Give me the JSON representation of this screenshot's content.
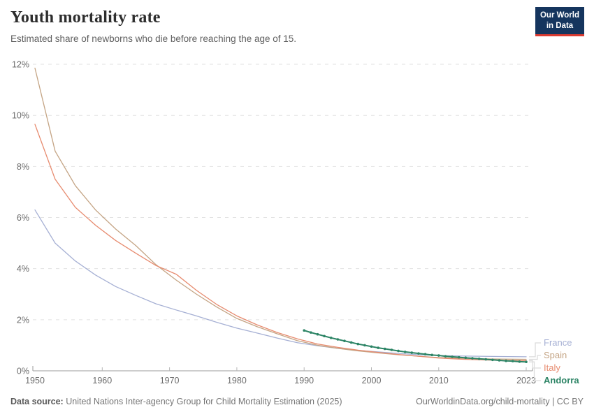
{
  "header": {
    "title": "Youth mortality rate",
    "subtitle": "Estimated share of newborns who die before reaching the age of 15."
  },
  "logo": {
    "line1": "Our World",
    "line2": "in Data",
    "bg_color": "#15355e",
    "accent_color": "#dc3a30"
  },
  "chart_data": {
    "type": "line",
    "title": "Youth mortality rate",
    "xlabel": "",
    "ylabel": "",
    "xlim": [
      1950,
      2023
    ],
    "ylim": [
      0,
      12
    ],
    "grid": "dashed-horizontal",
    "legend_position": "right",
    "y_axis": {
      "unit": "%",
      "ticks": [
        {
          "value": 0,
          "label": "0%"
        },
        {
          "value": 2,
          "label": "2%"
        },
        {
          "value": 4,
          "label": "4%"
        },
        {
          "value": 6,
          "label": "6%"
        },
        {
          "value": 8,
          "label": "8%"
        },
        {
          "value": 10,
          "label": "10%"
        },
        {
          "value": 12,
          "label": "12%"
        }
      ]
    },
    "x_axis": {
      "ticks": [
        {
          "year": 1950,
          "label": "1950",
          "tick": false
        },
        {
          "year": 1960,
          "label": "1960",
          "tick": true
        },
        {
          "year": 1970,
          "label": "1970",
          "tick": true
        },
        {
          "year": 1980,
          "label": "1980",
          "tick": true
        },
        {
          "year": 1990,
          "label": "1990",
          "tick": true
        },
        {
          "year": 2000,
          "label": "2000",
          "tick": true
        },
        {
          "year": 2010,
          "label": "2010",
          "tick": true
        },
        {
          "year": 2023,
          "label": "2023",
          "tick": true
        }
      ]
    },
    "series": [
      {
        "name": "France",
        "color": "#a6b0d4",
        "markers": false,
        "bold": false,
        "line_width": 1.3,
        "x": [
          1950,
          1953,
          1956,
          1959,
          1962,
          1965,
          1968,
          1971,
          1974,
          1977,
          1980,
          1983,
          1986,
          1989,
          1992,
          1995,
          1998,
          2001,
          2004,
          2007,
          2010,
          2013,
          2016,
          2019,
          2023
        ],
        "values": [
          6.3,
          5.0,
          4.3,
          3.75,
          3.3,
          2.95,
          2.62,
          2.38,
          2.15,
          1.9,
          1.67,
          1.48,
          1.28,
          1.1,
          0.98,
          0.88,
          0.8,
          0.74,
          0.68,
          0.63,
          0.6,
          0.58,
          0.57,
          0.56,
          0.55
        ]
      },
      {
        "name": "Spain",
        "color": "#c4a484",
        "markers": false,
        "bold": false,
        "line_width": 1.3,
        "x": [
          1950,
          1953,
          1956,
          1959,
          1962,
          1965,
          1968,
          1971,
          1974,
          1977,
          1980,
          1983,
          1986,
          1989,
          1992,
          1995,
          1998,
          2001,
          2004,
          2007,
          2010,
          2013,
          2016,
          2019,
          2023
        ],
        "values": [
          11.85,
          8.6,
          7.25,
          6.3,
          5.55,
          4.9,
          4.15,
          3.55,
          3.0,
          2.5,
          2.05,
          1.73,
          1.45,
          1.18,
          1.0,
          0.88,
          0.78,
          0.7,
          0.63,
          0.57,
          0.52,
          0.49,
          0.47,
          0.46,
          0.45
        ]
      },
      {
        "name": "Italy",
        "color": "#e78b6f",
        "markers": false,
        "bold": false,
        "line_width": 1.3,
        "x": [
          1950,
          1953,
          1956,
          1959,
          1962,
          1965,
          1968,
          1971,
          1974,
          1977,
          1980,
          1983,
          1986,
          1989,
          1992,
          1995,
          1998,
          2001,
          2004,
          2007,
          2010,
          2013,
          2016,
          2019,
          2023
        ],
        "values": [
          9.65,
          7.5,
          6.4,
          5.7,
          5.1,
          4.6,
          4.12,
          3.78,
          3.15,
          2.6,
          2.15,
          1.8,
          1.5,
          1.25,
          1.05,
          0.92,
          0.81,
          0.72,
          0.64,
          0.57,
          0.5,
          0.46,
          0.43,
          0.41,
          0.4
        ]
      },
      {
        "name": "Andorra",
        "color": "#2c8465",
        "markers": true,
        "bold": true,
        "line_width": 2,
        "x": [
          1990,
          1991,
          1992,
          1993,
          1994,
          1995,
          1996,
          1997,
          1998,
          1999,
          2000,
          2001,
          2002,
          2003,
          2004,
          2005,
          2006,
          2007,
          2008,
          2009,
          2010,
          2011,
          2012,
          2013,
          2014,
          2015,
          2016,
          2017,
          2018,
          2019,
          2020,
          2021,
          2022,
          2023
        ],
        "values": [
          1.58,
          1.5,
          1.43,
          1.36,
          1.29,
          1.23,
          1.17,
          1.11,
          1.05,
          1.0,
          0.95,
          0.9,
          0.86,
          0.82,
          0.78,
          0.74,
          0.71,
          0.68,
          0.65,
          0.62,
          0.6,
          0.57,
          0.55,
          0.53,
          0.51,
          0.49,
          0.47,
          0.45,
          0.43,
          0.41,
          0.39,
          0.38,
          0.36,
          0.35
        ]
      }
    ]
  },
  "footer": {
    "source_label": "Data source:",
    "source_text": "United Nations Inter-agency Group for Child Mortality Estimation (2025)",
    "credit": "OurWorldinData.org/child-mortality | CC BY"
  }
}
